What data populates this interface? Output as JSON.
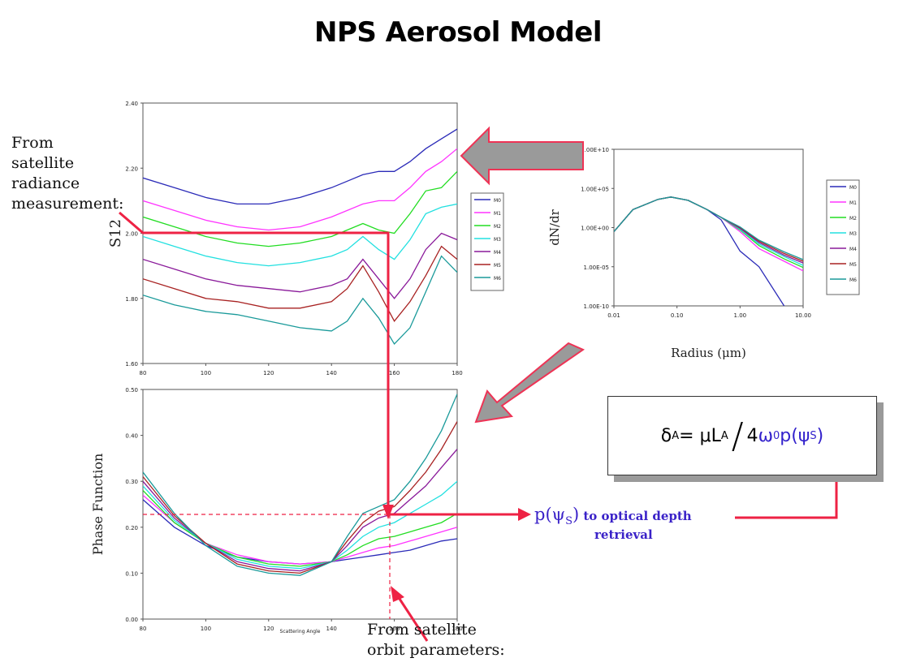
{
  "page": {
    "title": "NPS Aerosol Model"
  },
  "annotations": {
    "from_satellite_radiance": [
      "From",
      "satellite",
      "radiance",
      "measurement:"
    ],
    "from_satellite_orbit": [
      "From satellite",
      "orbit parameters:"
    ],
    "p_value_main": "p(ψ",
    "p_value_sub": "S",
    "p_value_close": ")",
    "retrieval_line1": "to optical depth",
    "retrieval_line2": "retrieval"
  },
  "formula": {
    "lhs": "δ",
    "lhs_sub": "A",
    "eq": " = μL",
    "l_sub": "A",
    "slash": "/",
    "four": "4 ",
    "omega": "ω",
    "omega_sub": "0",
    "p": " p(ψ",
    "p_sub": "S",
    "close": ")"
  },
  "colors": {
    "M0": "#2b2bb8",
    "M1": "#ff33ff",
    "M2": "#22dd22",
    "M3": "#22e0e0",
    "M4": "#8a1a9a",
    "M5": "#a82222",
    "M6": "#1a9a9a",
    "arrow_red": "#ee2244",
    "arrow_fill": "#999999"
  },
  "chart_data": [
    {
      "type": "line",
      "ylabel": "S12",
      "xlabel": "",
      "xlim": [
        80,
        180
      ],
      "ylim": [
        1.6,
        2.4
      ],
      "x_ticks": [
        "80",
        "100",
        "120",
        "140",
        "160",
        "180"
      ],
      "y_ticks": [
        "1.60",
        "1.80",
        "2.00",
        "2.20",
        "2.40"
      ],
      "legend": [
        "M0",
        "M1",
        "M2",
        "M3",
        "M4",
        "M5",
        "M6"
      ],
      "x": [
        80,
        90,
        100,
        110,
        120,
        130,
        140,
        145,
        150,
        155,
        160,
        165,
        170,
        175,
        180
      ],
      "series": [
        {
          "name": "M0",
          "values": [
            2.17,
            2.14,
            2.11,
            2.09,
            2.09,
            2.11,
            2.14,
            2.16,
            2.18,
            2.19,
            2.19,
            2.22,
            2.26,
            2.29,
            2.32
          ]
        },
        {
          "name": "M1",
          "values": [
            2.1,
            2.07,
            2.04,
            2.02,
            2.01,
            2.02,
            2.05,
            2.07,
            2.09,
            2.1,
            2.1,
            2.14,
            2.19,
            2.22,
            2.26
          ]
        },
        {
          "name": "M2",
          "values": [
            2.05,
            2.02,
            1.99,
            1.97,
            1.96,
            1.97,
            1.99,
            2.01,
            2.03,
            2.01,
            2.0,
            2.06,
            2.13,
            2.14,
            2.19
          ]
        },
        {
          "name": "M3",
          "values": [
            1.99,
            1.96,
            1.93,
            1.91,
            1.9,
            1.91,
            1.93,
            1.95,
            1.99,
            1.95,
            1.92,
            1.98,
            2.06,
            2.08,
            2.09
          ]
        },
        {
          "name": "M4",
          "values": [
            1.92,
            1.89,
            1.86,
            1.84,
            1.83,
            1.82,
            1.84,
            1.86,
            1.92,
            1.86,
            1.8,
            1.86,
            1.95,
            2.0,
            1.98
          ]
        },
        {
          "name": "M5",
          "values": [
            1.86,
            1.83,
            1.8,
            1.79,
            1.77,
            1.77,
            1.79,
            1.83,
            1.9,
            1.82,
            1.73,
            1.79,
            1.87,
            1.96,
            1.92
          ]
        },
        {
          "name": "M6",
          "values": [
            1.81,
            1.78,
            1.76,
            1.75,
            1.73,
            1.71,
            1.7,
            1.73,
            1.8,
            1.74,
            1.66,
            1.71,
            1.82,
            1.93,
            1.88
          ]
        }
      ]
    },
    {
      "type": "line",
      "ylabel": "Phase Function",
      "xlabel": "Scattering Angle",
      "xlim": [
        80,
        180
      ],
      "ylim": [
        0.0,
        0.5
      ],
      "x_ticks": [
        "80",
        "100",
        "120",
        "140",
        "160",
        "180"
      ],
      "y_ticks": [
        "0.00",
        "0.10",
        "0.20",
        "0.30",
        "0.40",
        "0.50"
      ],
      "x": [
        80,
        90,
        100,
        110,
        120,
        130,
        140,
        145,
        150,
        155,
        160,
        165,
        170,
        175,
        180
      ],
      "series": [
        {
          "name": "M0",
          "values": [
            0.26,
            0.2,
            0.16,
            0.135,
            0.125,
            0.12,
            0.125,
            0.13,
            0.135,
            0.14,
            0.145,
            0.15,
            0.16,
            0.17,
            0.175
          ]
        },
        {
          "name": "M1",
          "values": [
            0.27,
            0.21,
            0.165,
            0.14,
            0.125,
            0.12,
            0.125,
            0.135,
            0.145,
            0.155,
            0.16,
            0.17,
            0.18,
            0.19,
            0.2
          ]
        },
        {
          "name": "M2",
          "values": [
            0.28,
            0.21,
            0.165,
            0.135,
            0.12,
            0.115,
            0.125,
            0.14,
            0.16,
            0.175,
            0.18,
            0.19,
            0.2,
            0.21,
            0.23
          ]
        },
        {
          "name": "M3",
          "values": [
            0.29,
            0.215,
            0.165,
            0.13,
            0.115,
            0.11,
            0.125,
            0.15,
            0.18,
            0.2,
            0.21,
            0.23,
            0.25,
            0.27,
            0.3
          ]
        },
        {
          "name": "M4",
          "values": [
            0.3,
            0.22,
            0.165,
            0.125,
            0.11,
            0.105,
            0.125,
            0.16,
            0.2,
            0.22,
            0.23,
            0.26,
            0.29,
            0.33,
            0.37
          ]
        },
        {
          "name": "M5",
          "values": [
            0.31,
            0.225,
            0.165,
            0.12,
            0.105,
            0.1,
            0.125,
            0.17,
            0.21,
            0.235,
            0.245,
            0.28,
            0.32,
            0.37,
            0.43
          ]
        },
        {
          "name": "M6",
          "values": [
            0.32,
            0.23,
            0.16,
            0.115,
            0.1,
            0.095,
            0.125,
            0.18,
            0.23,
            0.245,
            0.26,
            0.3,
            0.35,
            0.41,
            0.49
          ]
        }
      ]
    },
    {
      "type": "line",
      "ylabel": "dN/dr",
      "xlabel": "Radius (μm)",
      "xscale": "log",
      "yscale": "log",
      "xlim": [
        0.01,
        10
      ],
      "ylim": [
        1e-10,
        10000000000.0
      ],
      "x_ticks": [
        "0.01",
        "0.10",
        "1.00",
        "10.00"
      ],
      "y_ticks": [
        "1.00E-10",
        "1.00E-05",
        "1.00E+00",
        "1.00E+05",
        "1.00E+10"
      ],
      "legend": [
        "M0",
        "M1",
        "M2",
        "M3",
        "M4",
        "M5",
        "M6"
      ],
      "x": [
        0.01,
        0.02,
        0.05,
        0.08,
        0.15,
        0.3,
        0.5,
        1.0,
        2.0,
        5.0,
        10.0
      ],
      "series": [
        {
          "name": "M0",
          "values": [
            0.3,
            200,
            4000,
            8000,
            3000,
            200,
            10,
            0.001,
            1e-05,
            1e-10,
            1e-14
          ]
        },
        {
          "name": "M1",
          "values": [
            0.3,
            200,
            4000,
            8000,
            3000,
            200,
            20,
            0.3,
            0.002,
            5e-05,
            3e-06
          ]
        },
        {
          "name": "M2",
          "values": [
            0.3,
            200,
            4000,
            8000,
            3000,
            200,
            20,
            0.5,
            0.005,
            0.0001,
            8e-06
          ]
        },
        {
          "name": "M3",
          "values": [
            0.3,
            200,
            4000,
            8000,
            3000,
            200,
            20,
            0.6,
            0.008,
            0.0002,
            1.5e-05
          ]
        },
        {
          "name": "M4",
          "values": [
            0.3,
            200,
            4000,
            8000,
            3000,
            200,
            20,
            0.8,
            0.012,
            0.0003,
            3e-05
          ]
        },
        {
          "name": "M5",
          "values": [
            0.3,
            200,
            4000,
            8000,
            3000,
            200,
            20,
            1.0,
            0.018,
            0.0005,
            5e-05
          ]
        },
        {
          "name": "M6",
          "values": [
            0.3,
            200,
            4000,
            8000,
            3000,
            200,
            20,
            1.2,
            0.025,
            0.0008,
            8e-05
          ]
        }
      ]
    }
  ]
}
